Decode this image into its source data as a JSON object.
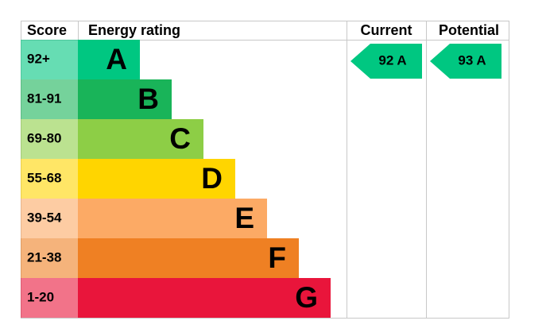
{
  "header": {
    "score": "Score",
    "rating": "Energy rating",
    "current": "Current",
    "potential": "Potential"
  },
  "bands": [
    {
      "range": "92+",
      "letter": "A",
      "color": "#00c781"
    },
    {
      "range": "81-91",
      "letter": "B",
      "color": "#19b459"
    },
    {
      "range": "69-80",
      "letter": "C",
      "color": "#8dce46"
    },
    {
      "range": "55-68",
      "letter": "D",
      "color": "#ffd500"
    },
    {
      "range": "39-54",
      "letter": "E",
      "color": "#fcaa65"
    },
    {
      "range": "21-38",
      "letter": "F",
      "color": "#ef8023"
    },
    {
      "range": "1-20",
      "letter": "G",
      "color": "#e9153b"
    }
  ],
  "current": {
    "label": "92 A",
    "color": "#00c781"
  },
  "potential": {
    "label": "93 A",
    "color": "#00c781"
  }
}
